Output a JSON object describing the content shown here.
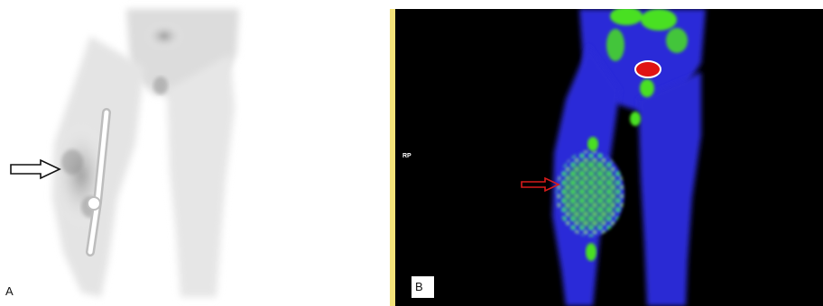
{
  "panel_a": {
    "label": "A",
    "colors": {
      "background": "#ffffff",
      "tissue": "#cfcfcf",
      "uptake": "#8a8a8a",
      "implant": "#ffffff"
    },
    "arrow": {
      "style": "outlined",
      "color": "#111111"
    }
  },
  "panel_b": {
    "label": "B",
    "orientation_label": "RP",
    "colors": {
      "background": "#000000",
      "tissue": "#2a2ad8",
      "uptake": "#49e021",
      "hotspot": "#e01313",
      "frame": "#f3e27a"
    },
    "arrow": {
      "style": "outlined",
      "color": "#d81b1b"
    }
  }
}
